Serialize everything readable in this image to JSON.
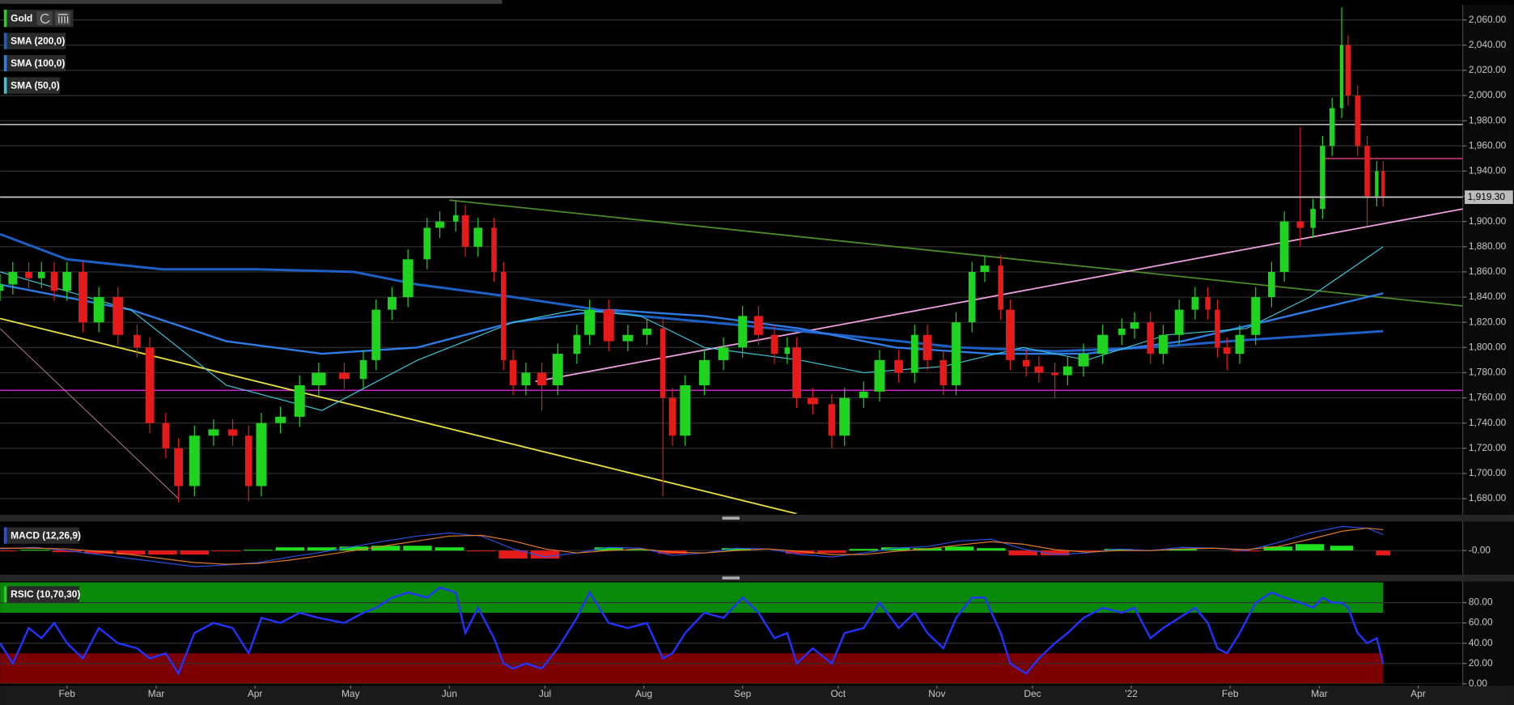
{
  "chart_data": [
    {
      "type": "candlestick",
      "title": "Gold",
      "x": [
        -21,
        -17,
        -12,
        -8,
        -4,
        0,
        5,
        10,
        16,
        22,
        26,
        31,
        35,
        40,
        46,
        52,
        57,
        61,
        67,
        73,
        79,
        87,
        93,
        97,
        102,
        107,
        113,
        117,
        122,
        125,
        129,
        134,
        137,
        140,
        144,
        149,
        154,
        160,
        164,
        170,
        176,
        182,
        187,
        190,
        194,
        200,
        206,
        212,
        217,
        222,
        226,
        229,
        234,
        240,
        244,
        250,
        255,
        261,
        266,
        270,
        275,
        279,
        284,
        288,
        293,
        296,
        301,
        305,
        310,
        314,
        319,
        325,
        331,
        335,
        340,
        344,
        349,
        354,
        358,
        361,
        364,
        368,
        373,
        378,
        382,
        387,
        391,
        394,
        397,
        400,
        402,
        405,
        408,
        411,
        413
      ],
      "open": [
        1845,
        1850,
        1860,
        1855,
        1860,
        1845,
        1860,
        1820,
        1840,
        1810,
        1800,
        1740,
        1720,
        1690,
        1730,
        1735,
        1730,
        1690,
        1740,
        1745,
        1770,
        1780,
        1775,
        1790,
        1830,
        1840,
        1870,
        1895,
        1900,
        1905,
        1880,
        1895,
        1860,
        1790,
        1770,
        1780,
        1770,
        1795,
        1810,
        1830,
        1805,
        1810,
        1815,
        1760,
        1730,
        1770,
        1790,
        1800,
        1825,
        1810,
        1795,
        1800,
        1760,
        1755,
        1730,
        1760,
        1765,
        1790,
        1780,
        1810,
        1790,
        1770,
        1820,
        1860,
        1865,
        1830,
        1790,
        1785,
        1780,
        1778,
        1785,
        1795,
        1810,
        1815,
        1820,
        1795,
        1810,
        1830,
        1840,
        1830,
        1800,
        1795,
        1810,
        1840,
        1860,
        1900,
        1895,
        1910,
        1960,
        1990,
        2040,
        2000,
        1960,
        1920,
        1940
      ],
      "high": [
        1858,
        1868,
        1868,
        1868,
        1868,
        1868,
        1868,
        1848,
        1848,
        1818,
        1808,
        1748,
        1728,
        1738,
        1743,
        1743,
        1738,
        1748,
        1753,
        1778,
        1788,
        1788,
        1798,
        1838,
        1848,
        1878,
        1903,
        1908,
        1916,
        1913,
        1903,
        1903,
        1868,
        1798,
        1788,
        1788,
        1803,
        1818,
        1838,
        1838,
        1818,
        1823,
        1823,
        1768,
        1778,
        1798,
        1808,
        1833,
        1833,
        1818,
        1808,
        1808,
        1768,
        1763,
        1768,
        1773,
        1798,
        1798,
        1818,
        1818,
        1798,
        1828,
        1868,
        1873,
        1873,
        1838,
        1798,
        1793,
        1788,
        1793,
        1803,
        1818,
        1823,
        1828,
        1828,
        1818,
        1838,
        1848,
        1848,
        1838,
        1808,
        1818,
        1848,
        1868,
        1908,
        1975,
        1918,
        1968,
        1998,
        2070,
        2048,
        2008,
        1968,
        1948,
        1948
      ],
      "low": [
        1837,
        1842,
        1847,
        1847,
        1837,
        1837,
        1812,
        1812,
        1802,
        1792,
        1732,
        1712,
        1677,
        1682,
        1722,
        1722,
        1678,
        1682,
        1732,
        1737,
        1762,
        1767,
        1767,
        1782,
        1822,
        1832,
        1862,
        1887,
        1892,
        1872,
        1872,
        1852,
        1782,
        1762,
        1762,
        1750,
        1762,
        1787,
        1802,
        1797,
        1797,
        1802,
        1682,
        1722,
        1722,
        1762,
        1782,
        1792,
        1802,
        1787,
        1787,
        1752,
        1747,
        1720,
        1722,
        1752,
        1757,
        1772,
        1772,
        1782,
        1762,
        1762,
        1812,
        1852,
        1822,
        1782,
        1777,
        1772,
        1760,
        1770,
        1777,
        1787,
        1802,
        1807,
        1787,
        1787,
        1802,
        1822,
        1822,
        1792,
        1782,
        1787,
        1802,
        1832,
        1852,
        1880,
        1887,
        1902,
        1952,
        1982,
        1992,
        1952,
        1897,
        1912,
        1912
      ],
      "close": [
        1850,
        1860,
        1855,
        1860,
        1845,
        1860,
        1820,
        1840,
        1810,
        1800,
        1740,
        1720,
        1690,
        1730,
        1735,
        1730,
        1690,
        1740,
        1745,
        1770,
        1780,
        1775,
        1790,
        1830,
        1840,
        1870,
        1895,
        1900,
        1905,
        1880,
        1895,
        1860,
        1790,
        1770,
        1780,
        1770,
        1795,
        1810,
        1830,
        1805,
        1810,
        1815,
        1760,
        1730,
        1770,
        1790,
        1800,
        1825,
        1810,
        1795,
        1800,
        1760,
        1755,
        1730,
        1760,
        1765,
        1790,
        1780,
        1810,
        1790,
        1770,
        1820,
        1860,
        1865,
        1830,
        1790,
        1785,
        1780,
        1778,
        1785,
        1795,
        1810,
        1815,
        1820,
        1795,
        1810,
        1830,
        1840,
        1830,
        1800,
        1795,
        1810,
        1840,
        1860,
        1900,
        1895,
        1910,
        1960,
        1990,
        2040,
        2000,
        1960,
        1920,
        1940,
        1919.3
      ],
      "up_color": "#21d321",
      "down_color": "#e51b1b",
      "series": [
        {
          "name": "SMA (200,0)",
          "color": "#1d5fc4",
          "x": [
            -21,
            0,
            30,
            60,
            90,
            110,
            140,
            180,
            210,
            250,
            280,
            310,
            340,
            370,
            413
          ],
          "values": [
            1890,
            1870,
            1862,
            1862,
            1860,
            1850,
            1840,
            1825,
            1818,
            1808,
            1800,
            1797,
            1800,
            1806,
            1813
          ]
        },
        {
          "name": "SMA (100,0)",
          "color": "#2e7be6",
          "x": [
            -21,
            20,
            50,
            80,
            110,
            140,
            170,
            200,
            230,
            260,
            290,
            320,
            350,
            375,
            413
          ],
          "values": [
            1850,
            1830,
            1805,
            1795,
            1800,
            1820,
            1830,
            1825,
            1815,
            1800,
            1795,
            1795,
            1805,
            1820,
            1843
          ]
        },
        {
          "name": "SMA (50,0)",
          "color": "#3cc4d4",
          "x": [
            -21,
            20,
            50,
            80,
            110,
            140,
            160,
            180,
            200,
            230,
            250,
            275,
            300,
            320,
            345,
            370,
            390,
            413
          ],
          "values": [
            1860,
            1830,
            1770,
            1750,
            1790,
            1820,
            1830,
            1825,
            1800,
            1790,
            1780,
            1785,
            1800,
            1790,
            1810,
            1815,
            1840,
            1880
          ]
        }
      ],
      "hlines": [
        {
          "value": 1977,
          "color": "#d8d8d8"
        },
        {
          "value": 1766,
          "color": "#c822c8"
        }
      ],
      "trendlines": [
        {
          "x": [
            -21,
            229
          ],
          "y": [
            1823,
            1668
          ],
          "color": "#e8e040"
        },
        {
          "x": [
            -21,
            35
          ],
          "y": [
            1815,
            1680
          ],
          "color": "#c08090"
        },
        {
          "x": [
            120,
            438
          ],
          "y": [
            1917,
            1833
          ],
          "color": "#4a8a2a"
        },
        {
          "x": [
            147,
            438
          ],
          "y": [
            1773,
            1910
          ],
          "color": "#f0a0e0"
        },
        {
          "x": [
            394,
            438
          ],
          "y": [
            1950,
            1950
          ],
          "color": "#b03060"
        }
      ],
      "last_price": {
        "value": 1919.3,
        "label": "1,919.30"
      },
      "xlim": [
        -21,
        438
      ],
      "ylim": [
        1668,
        2072
      ],
      "yticks": [
        {
          "value": 1680,
          "label": "1,680.00"
        },
        {
          "value": 1700,
          "label": "1,700.00"
        },
        {
          "value": 1720,
          "label": "1,720.00"
        },
        {
          "value": 1740,
          "label": "1,740.00"
        },
        {
          "value": 1760,
          "label": "1,760.00"
        },
        {
          "value": 1780,
          "label": "1,780.00"
        },
        {
          "value": 1800,
          "label": "1,800.00"
        },
        {
          "value": 1820,
          "label": "1,820.00"
        },
        {
          "value": 1840,
          "label": "1,840.00"
        },
        {
          "value": 1860,
          "label": "1,860.00"
        },
        {
          "value": 1880,
          "label": "1,880.00"
        },
        {
          "value": 1900,
          "label": "1,900.00"
        },
        {
          "value": 1920,
          "label": "1,920.00"
        },
        {
          "value": 1940,
          "label": "1,940.00"
        },
        {
          "value": 1960,
          "label": "1,960.00"
        },
        {
          "value": 1980,
          "label": "1,980.00"
        },
        {
          "value": 2000,
          "label": "2,000.00"
        },
        {
          "value": 2020,
          "label": "2,020.00"
        },
        {
          "value": 2040,
          "label": "2,040.00"
        },
        {
          "value": 2060,
          "label": "2,060.00"
        }
      ],
      "grid": true
    },
    {
      "type": "macd",
      "title": "MACD (12,26,9)",
      "x": [
        -21,
        -10,
        0,
        10,
        20,
        30,
        40,
        50,
        60,
        70,
        80,
        90,
        100,
        110,
        120,
        130,
        140,
        150,
        160,
        170,
        180,
        190,
        200,
        210,
        220,
        230,
        240,
        250,
        260,
        270,
        280,
        290,
        300,
        310,
        320,
        330,
        340,
        350,
        360,
        370,
        380,
        390,
        400,
        408,
        413
      ],
      "series": [
        {
          "color": "#2a4fe0",
          "values": [
            2,
            4,
            0,
            -5,
            -10,
            -15,
            -20,
            -18,
            -15,
            -8,
            -2,
            5,
            12,
            18,
            22,
            18,
            2,
            -8,
            -3,
            4,
            3,
            -6,
            -3,
            3,
            2,
            -5,
            -8,
            -3,
            3,
            5,
            12,
            14,
            2,
            -5,
            -3,
            2,
            0,
            4,
            3,
            0,
            10,
            22,
            30,
            28,
            20
          ]
        },
        {
          "color": "#e0782a",
          "values": [
            3,
            3,
            2,
            -1,
            -5,
            -10,
            -15,
            -17,
            -16,
            -12,
            -6,
            0,
            6,
            12,
            18,
            19,
            12,
            2,
            -3,
            0,
            2,
            -2,
            -3,
            0,
            2,
            -1,
            -5,
            -5,
            -1,
            2,
            7,
            11,
            8,
            1,
            -2,
            0,
            0,
            2,
            3,
            1,
            5,
            14,
            24,
            28,
            26
          ]
        }
      ],
      "histogram": [
        -1,
        1,
        -2,
        -4,
        -5,
        -5,
        -5,
        -1,
        1,
        4,
        4,
        5,
        6,
        6,
        4,
        -1,
        -10,
        -10,
        0,
        4,
        1,
        -4,
        0,
        3,
        0,
        -4,
        -3,
        2,
        4,
        3,
        5,
        3,
        -6,
        -6,
        -1,
        2,
        0,
        2,
        0,
        -1,
        5,
        8,
        6,
        0,
        -6
      ],
      "up_color": "#1ee01e",
      "down_color": "#e51b1b",
      "xlim": [
        -21,
        438
      ],
      "ylim": [
        -30,
        35
      ],
      "yticks": [
        {
          "value": 0,
          "label": "-0.00"
        }
      ]
    },
    {
      "type": "rsi",
      "title": "RSIC (10,70,30)",
      "x": [
        -21,
        -17,
        -12,
        -8,
        -4,
        0,
        5,
        10,
        16,
        22,
        26,
        31,
        35,
        40,
        46,
        52,
        57,
        61,
        67,
        73,
        79,
        87,
        93,
        97,
        102,
        107,
        113,
        117,
        122,
        125,
        129,
        134,
        137,
        140,
        144,
        149,
        154,
        160,
        164,
        170,
        176,
        182,
        187,
        190,
        194,
        200,
        206,
        212,
        217,
        222,
        226,
        229,
        234,
        240,
        244,
        250,
        255,
        261,
        266,
        270,
        275,
        279,
        284,
        288,
        293,
        296,
        301,
        305,
        310,
        314,
        319,
        325,
        331,
        335,
        340,
        344,
        349,
        354,
        358,
        361,
        364,
        368,
        373,
        378,
        382,
        387,
        391,
        394,
        397,
        400,
        402,
        405,
        408,
        411,
        413
      ],
      "values": [
        40,
        20,
        55,
        45,
        60,
        40,
        25,
        55,
        40,
        35,
        25,
        30,
        10,
        50,
        60,
        55,
        30,
        65,
        60,
        70,
        65,
        60,
        70,
        75,
        85,
        90,
        85,
        95,
        90,
        50,
        75,
        45,
        20,
        15,
        20,
        15,
        35,
        65,
        90,
        60,
        55,
        60,
        25,
        30,
        50,
        70,
        65,
        85,
        70,
        45,
        50,
        20,
        35,
        20,
        50,
        55,
        80,
        55,
        70,
        50,
        35,
        65,
        85,
        85,
        50,
        20,
        10,
        25,
        40,
        50,
        65,
        75,
        70,
        75,
        45,
        55,
        65,
        75,
        60,
        35,
        30,
        50,
        80,
        90,
        85,
        80,
        75,
        85,
        80,
        80,
        75,
        50,
        40,
        45,
        20
      ],
      "color": "#2233ff",
      "bands": [
        {
          "from": 70,
          "to": 100,
          "color": "#0a8a0a"
        },
        {
          "from": 0,
          "to": 30,
          "color": "#7d0000"
        }
      ],
      "xlim": [
        -21,
        438
      ],
      "ylim": [
        0,
        100
      ],
      "yticks": [
        {
          "value": 0,
          "label": "0.00"
        },
        {
          "value": 20,
          "label": "20.00"
        },
        {
          "value": 40,
          "label": "40.00"
        },
        {
          "value": 60,
          "label": "60.00"
        },
        {
          "value": 80,
          "label": "80.00"
        }
      ],
      "xticks": [
        {
          "value": 0,
          "label": "Feb"
        },
        {
          "value": 28,
          "label": "Mar"
        },
        {
          "value": 59,
          "label": "Apr"
        },
        {
          "value": 89,
          "label": "May"
        },
        {
          "value": 120,
          "label": "Jun"
        },
        {
          "value": 150,
          "label": "Jul"
        },
        {
          "value": 181,
          "label": "Aug"
        },
        {
          "value": 212,
          "label": "Sep"
        },
        {
          "value": 242,
          "label": "Oct"
        },
        {
          "value": 273,
          "label": "Nov"
        },
        {
          "value": 303,
          "label": "Dec"
        },
        {
          "value": 334,
          "label": "'22"
        },
        {
          "value": 365,
          "label": "Feb"
        },
        {
          "value": 393,
          "label": "Mar"
        },
        {
          "value": 424,
          "label": "Apr"
        }
      ]
    }
  ]
}
